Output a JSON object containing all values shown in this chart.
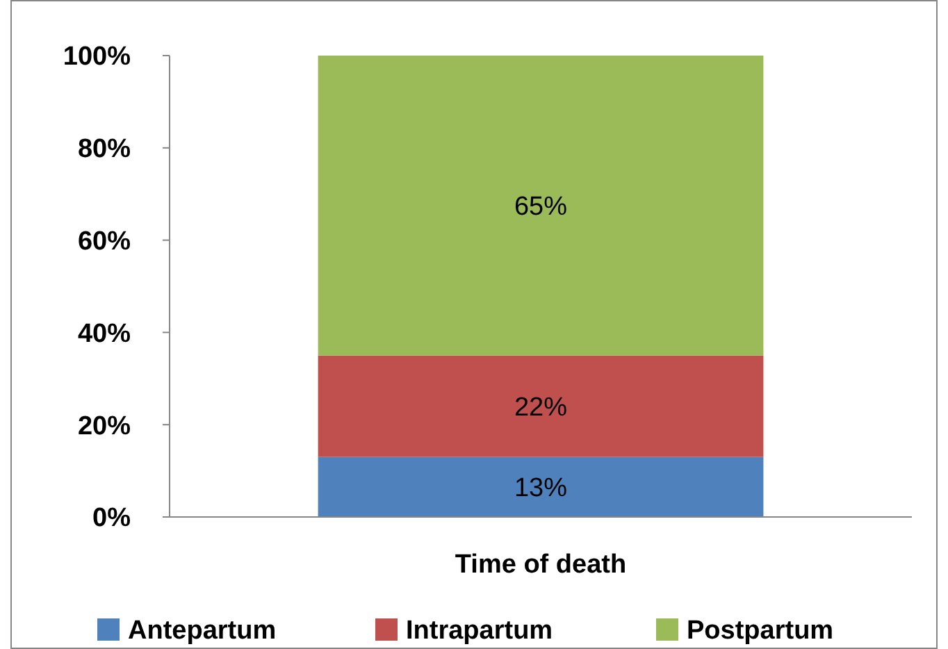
{
  "chart_data": {
    "type": "bar",
    "stacked": true,
    "categories": [
      "Time of death"
    ],
    "series": [
      {
        "name": "Antepartum",
        "color": "#4f81bd",
        "values": [
          13
        ]
      },
      {
        "name": "Intrapartum",
        "color": "#c0504d",
        "values": [
          22
        ]
      },
      {
        "name": "Postpartum",
        "color": "#9bbb59",
        "values": [
          65
        ]
      }
    ],
    "value_labels": [
      [
        "13%"
      ],
      [
        "22%"
      ],
      [
        "65%"
      ]
    ],
    "ylim": [
      0,
      100
    ],
    "yticks": [
      {
        "value": 0,
        "label": "0%"
      },
      {
        "value": 20,
        "label": "20%"
      },
      {
        "value": 40,
        "label": "40%"
      },
      {
        "value": 60,
        "label": "60%"
      },
      {
        "value": 80,
        "label": "80%"
      },
      {
        "value": 100,
        "label": "100%"
      }
    ],
    "grid": false,
    "legend": "bottom"
  }
}
